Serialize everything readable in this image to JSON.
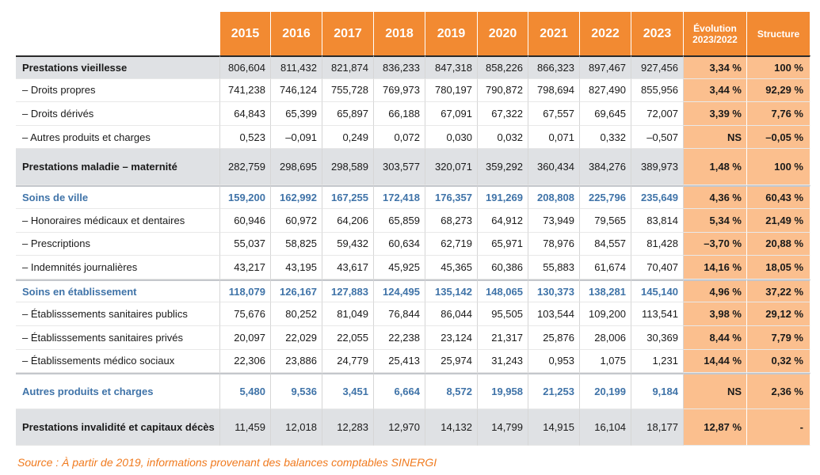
{
  "header": {
    "years": [
      "2015",
      "2016",
      "2017",
      "2018",
      "2019",
      "2020",
      "2021",
      "2022",
      "2023"
    ],
    "evolution": "Évolution 2023/2022",
    "structure": "Structure"
  },
  "rows": [
    {
      "label": "Prestations vieillesse",
      "values": [
        "806,604",
        "811,432",
        "821,874",
        "836,233",
        "847,318",
        "858,226",
        "866,323",
        "897,467",
        "927,456"
      ],
      "evolution": "3,34 %",
      "structure": "100 %"
    },
    {
      "label": "– Droits propres",
      "values": [
        "741,238",
        "746,124",
        "755,728",
        "769,973",
        "780,197",
        "790,872",
        "798,694",
        "827,490",
        "855,956"
      ],
      "evolution": "3,44 %",
      "structure": "92,29 %"
    },
    {
      "label": "– Droits dérivés",
      "values": [
        "64,843",
        "65,399",
        "65,897",
        "66,188",
        "67,091",
        "67,322",
        "67,557",
        "69,645",
        "72,007"
      ],
      "evolution": "3,39 %",
      "structure": "7,76 %"
    },
    {
      "label": "– Autres produits et charges",
      "values": [
        "0,523",
        "–0,091",
        "0,249",
        "0,072",
        "0,030",
        "0,032",
        "0,071",
        "0,332",
        "–0,507"
      ],
      "evolution": "NS",
      "structure": "–0,05 %"
    },
    {
      "label": "Prestations maladie – maternité",
      "values": [
        "282,759",
        "298,695",
        "298,589",
        "303,577",
        "320,071",
        "359,292",
        "360,434",
        "384,276",
        "389,973"
      ],
      "evolution": "1,48 %",
      "structure": "100 %"
    },
    {
      "label": "Soins de ville",
      "values": [
        "159,200",
        "162,992",
        "167,255",
        "172,418",
        "176,357",
        "191,269",
        "208,808",
        "225,796",
        "235,649"
      ],
      "evolution": "4,36 %",
      "structure": "60,43 %"
    },
    {
      "label": "– Honoraires médicaux et dentaires",
      "values": [
        "60,946",
        "60,972",
        "64,206",
        "65,859",
        "68,273",
        "64,912",
        "73,949",
        "79,565",
        "83,814"
      ],
      "evolution": "5,34 %",
      "structure": "21,49 %"
    },
    {
      "label": "– Prescriptions",
      "values": [
        "55,037",
        "58,825",
        "59,432",
        "60,634",
        "62,719",
        "65,971",
        "78,976",
        "84,557",
        "81,428"
      ],
      "evolution": "–3,70 %",
      "structure": "20,88 %"
    },
    {
      "label": "– Indemnités journalières",
      "values": [
        "43,217",
        "43,195",
        "43,617",
        "45,925",
        "45,365",
        "60,386",
        "55,883",
        "61,674",
        "70,407"
      ],
      "evolution": "14,16 %",
      "structure": "18,05 %"
    },
    {
      "label": "Soins en établissement",
      "values": [
        "118,079",
        "126,167",
        "127,883",
        "124,495",
        "135,142",
        "148,065",
        "130,373",
        "138,281",
        "145,140"
      ],
      "evolution": "4,96 %",
      "structure": "37,22 %"
    },
    {
      "label": "– Établisssements sanitaires publics",
      "values": [
        "75,676",
        "80,252",
        "81,049",
        "76,844",
        "86,044",
        "95,505",
        "103,544",
        "109,200",
        "113,541"
      ],
      "evolution": "3,98 %",
      "structure": "29,12 %"
    },
    {
      "label": "– Établisssements sanitaires privés",
      "values": [
        "20,097",
        "22,029",
        "22,055",
        "22,238",
        "23,124",
        "21,317",
        "25,876",
        "28,006",
        "30,369"
      ],
      "evolution": "8,44 %",
      "structure": "7,79 %"
    },
    {
      "label": "– Établissements médico sociaux",
      "values": [
        "22,306",
        "23,886",
        "24,779",
        "25,413",
        "25,974",
        "31,243",
        "0,953",
        "1,075",
        "1,231"
      ],
      "evolution": "14,44 %",
      "structure": "0,32 %"
    },
    {
      "label": "Autres produits et charges",
      "values": [
        "5,480",
        "9,536",
        "3,451",
        "6,664",
        "8,572",
        "19,958",
        "21,253",
        "20,199",
        "9,184"
      ],
      "evolution": "NS",
      "structure": "2,36 %"
    },
    {
      "label": "Prestations invalidité et capitaux décès",
      "values": [
        "11,459",
        "12,018",
        "12,283",
        "12,970",
        "14,132",
        "14,799",
        "14,915",
        "16,104",
        "18,177"
      ],
      "evolution": "12,87 %",
      "structure": "-"
    }
  ],
  "source": "Source : À partir de 2019, informations provenant des balances comptables SINERGI",
  "colors": {
    "header_orange": "#f28a32",
    "light_orange": "#fbbf8e",
    "grey_row": "#dfe1e4",
    "blue_text": "#3f73a8",
    "source_text": "#f07a1e"
  }
}
